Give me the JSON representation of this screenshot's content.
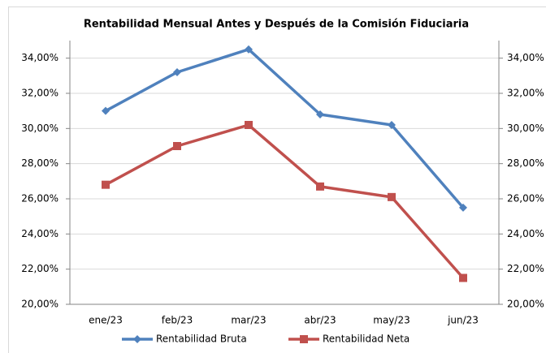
{
  "chart_data": {
    "type": "line",
    "title": "Rentabilidad Mensual Antes y Después de la Comisión Fiduciaria",
    "categories": [
      "ene/23",
      "feb/23",
      "mar/23",
      "abr/23",
      "may/23",
      "jun/23"
    ],
    "series": [
      {
        "name": "Rentabilidad Bruta",
        "color": "#4f81bd",
        "marker": "diamond",
        "values": [
          31.0,
          33.2,
          34.5,
          30.8,
          30.2,
          25.5
        ]
      },
      {
        "name": "Rentabilidad Neta",
        "color": "#c0504d",
        "marker": "square",
        "values": [
          26.8,
          29.0,
          30.2,
          26.7,
          26.1,
          21.5
        ]
      }
    ],
    "ylim": [
      20,
      35
    ],
    "yticks": [
      {
        "value": 20,
        "label": "20,00%"
      },
      {
        "value": 22,
        "label": "22,00%"
      },
      {
        "value": 24,
        "label": "24,00%"
      },
      {
        "value": 26,
        "label": "26,00%"
      },
      {
        "value": 28,
        "label": "28,00%"
      },
      {
        "value": 30,
        "label": "30,00%"
      },
      {
        "value": 32,
        "label": "32,00%"
      },
      {
        "value": 34,
        "label": "34,00%"
      }
    ],
    "y2lim": [
      20,
      35
    ],
    "y2ticks": [
      {
        "value": 20,
        "label": "20,00%"
      },
      {
        "value": 22,
        "label": "22,00%"
      },
      {
        "value": 24,
        "label": "24,00%"
      },
      {
        "value": 26,
        "label": "26,00%"
      },
      {
        "value": 28,
        "label": "28,00%"
      },
      {
        "value": 30,
        "label": "30,00%"
      },
      {
        "value": 32,
        "label": "32,00%"
      },
      {
        "value": 34,
        "label": "34,00%"
      }
    ],
    "grid": true,
    "legend": "bottom"
  }
}
